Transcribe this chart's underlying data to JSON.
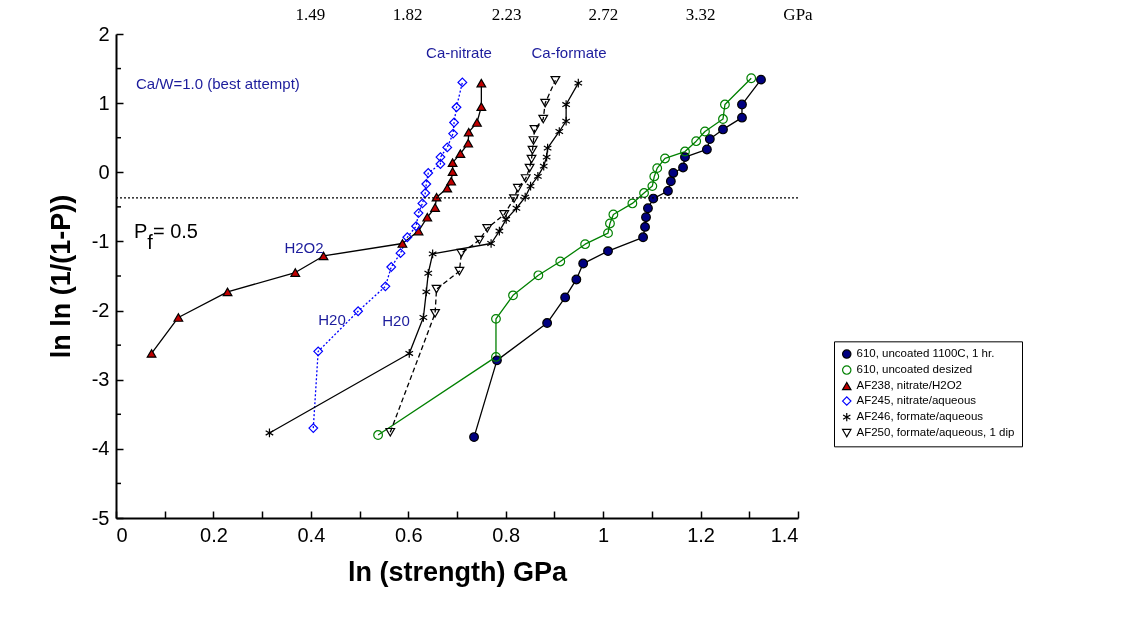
{
  "chart_data": {
    "type": "line",
    "xlabel": "ln (strength) GPa",
    "ylabel": "ln ln (1/(1-P))",
    "xlim": [
      0,
      1.4
    ],
    "xticks": [
      0,
      {
        "value": 0.1,
        "label": null
      },
      0.2,
      {
        "value": 0.3,
        "label": null
      },
      0.4,
      {
        "value": 0.5,
        "label": null
      },
      0.6,
      {
        "value": 0.7,
        "label": null
      },
      0.8,
      {
        "value": 0.9,
        "label": null
      },
      1,
      {
        "value": 1.1,
        "label": null
      },
      1.2,
      {
        "value": 1.3,
        "label": null
      },
      1.4
    ],
    "x2lim": [
      1,
      4.055
    ],
    "x2ticks": [
      1.49,
      1.82,
      2.23,
      2.72,
      3.32
    ],
    "x2label": "GPa",
    "log": "x2",
    "ylim": [
      -5,
      2
    ],
    "yticks": [
      -5,
      {
        "value": -4.5,
        "label": null
      },
      -4,
      {
        "value": -3.5,
        "label": null
      },
      -3,
      {
        "value": -2.5,
        "label": null
      },
      -2,
      {
        "value": -1.5,
        "label": null
      },
      -1,
      {
        "value": -0.5,
        "label": null
      },
      0,
      {
        "value": 0.5,
        "label": null
      },
      1,
      {
        "value": 1.5,
        "label": null
      },
      2
    ],
    "grid": false,
    "legend": "right",
    "ref_lines": [
      {
        "axis": "y",
        "value": -0.37,
        "line_style": "dotted",
        "color": "#000000"
      }
    ],
    "annotations": [
      "Ca/W=1.0 (best attempt)",
      "Ca-nitrate",
      "Ca-formate",
      "H2O2",
      "H20",
      "H20",
      "P$_{f}$= 0.5"
    ],
    "series": [
      {
        "name": "610, uncoated 1100C, 1 hr.",
        "color": "#000080",
        "marker": "circle",
        "line_style": "solid",
        "x": [
          0.735,
          0.782,
          0.885,
          0.922,
          0.945,
          0.959,
          1.01,
          1.082,
          1.086,
          1.088,
          1.092,
          1.103,
          1.133,
          1.139,
          1.144,
          1.164,
          1.168,
          1.213,
          1.219,
          1.246,
          1.285,
          1.285,
          1.324
        ],
        "values": [
          -3.83,
          -2.72,
          -2.18,
          -1.81,
          -1.55,
          -1.32,
          -1.14,
          -0.94,
          -0.79,
          -0.65,
          -0.52,
          -0.38,
          -0.27,
          -0.13,
          -0.01,
          0.07,
          0.22,
          0.33,
          0.48,
          0.62,
          0.79,
          0.98,
          1.34
        ]
      },
      {
        "name": "610, uncoated desized",
        "color": "#008000",
        "marker": "circle",
        "line_style": "solid",
        "x": [
          0.538,
          0.78,
          0.78,
          0.815,
          0.867,
          0.912,
          0.963,
          1.01,
          1.014,
          1.021,
          1.06,
          1.084,
          1.101,
          1.105,
          1.111,
          1.127,
          1.168,
          1.191,
          1.209,
          1.246,
          1.25,
          1.304
        ],
        "values": [
          -3.8,
          -2.67,
          -2.12,
          -1.78,
          -1.49,
          -1.29,
          -1.04,
          -0.88,
          -0.74,
          -0.61,
          -0.45,
          -0.3,
          -0.2,
          -0.06,
          0.06,
          0.2,
          0.3,
          0.45,
          0.59,
          0.77,
          0.98,
          1.36
        ]
      },
      {
        "name": "AF238, nitrate/H2O2",
        "color": "#c00000",
        "marker": "triangle",
        "line_style": "solid",
        "x": [
          0.073,
          0.128,
          0.229,
          0.368,
          0.426,
          0.588,
          0.621,
          0.639,
          0.655,
          0.658,
          0.68,
          0.688,
          0.691,
          0.691,
          0.707,
          0.723,
          0.724,
          0.741,
          0.75,
          0.75
        ],
        "values": [
          -2.62,
          -2.1,
          -1.73,
          -1.45,
          -1.21,
          -1.03,
          -0.85,
          -0.65,
          -0.51,
          -0.36,
          -0.23,
          -0.13,
          0.01,
          0.14,
          0.27,
          0.42,
          0.58,
          0.72,
          0.95,
          1.29
        ]
      },
      {
        "name": "AF245, nitrate/aqueous",
        "color": "#0000ff",
        "marker": "diamond",
        "line_style": "dotted",
        "x": [
          0.405,
          0.415,
          0.497,
          0.553,
          0.565,
          0.584,
          0.598,
          0.616,
          0.621,
          0.629,
          0.635,
          0.637,
          0.641,
          0.666,
          0.666,
          0.68,
          0.692,
          0.694,
          0.699,
          0.711
        ],
        "values": [
          -3.7,
          -2.59,
          -2.01,
          -1.65,
          -1.37,
          -1.17,
          -0.94,
          -0.78,
          -0.59,
          -0.45,
          -0.3,
          -0.17,
          -0.01,
          0.12,
          0.22,
          0.36,
          0.56,
          0.72,
          0.94,
          1.3
        ]
      },
      {
        "name": "AF246, formate/aqueous",
        "color": "#000000",
        "marker": "cross",
        "line_style": "solid",
        "x": [
          0.315,
          0.602,
          0.631,
          0.637,
          0.641,
          0.65,
          0.77,
          0.787,
          0.801,
          0.822,
          0.84,
          0.851,
          0.866,
          0.878,
          0.884,
          0.886,
          0.91,
          0.924,
          0.924,
          0.949
        ],
        "values": [
          -3.77,
          -2.62,
          -2.1,
          -1.73,
          -1.46,
          -1.18,
          -1.03,
          -0.85,
          -0.68,
          -0.52,
          -0.36,
          -0.2,
          -0.06,
          0.09,
          0.22,
          0.35,
          0.59,
          0.74,
          0.98,
          1.29
        ]
      },
      {
        "name": "AF250, formate/aqueous, 1 dip",
        "color": "#000000",
        "marker": "triangle-down",
        "line_style": "dashed",
        "x": [
          0.563,
          0.655,
          0.658,
          0.705,
          0.709,
          0.746,
          0.762,
          0.797,
          0.817,
          0.825,
          0.841,
          0.849,
          0.853,
          0.855,
          0.857,
          0.859,
          0.877,
          0.881,
          0.902
        ],
        "values": [
          -3.76,
          -2.04,
          -1.69,
          -1.43,
          -1.17,
          -0.98,
          -0.81,
          -0.61,
          -0.38,
          -0.23,
          -0.09,
          0.06,
          0.19,
          0.32,
          0.46,
          0.62,
          0.77,
          1.0,
          1.33
        ]
      }
    ]
  }
}
